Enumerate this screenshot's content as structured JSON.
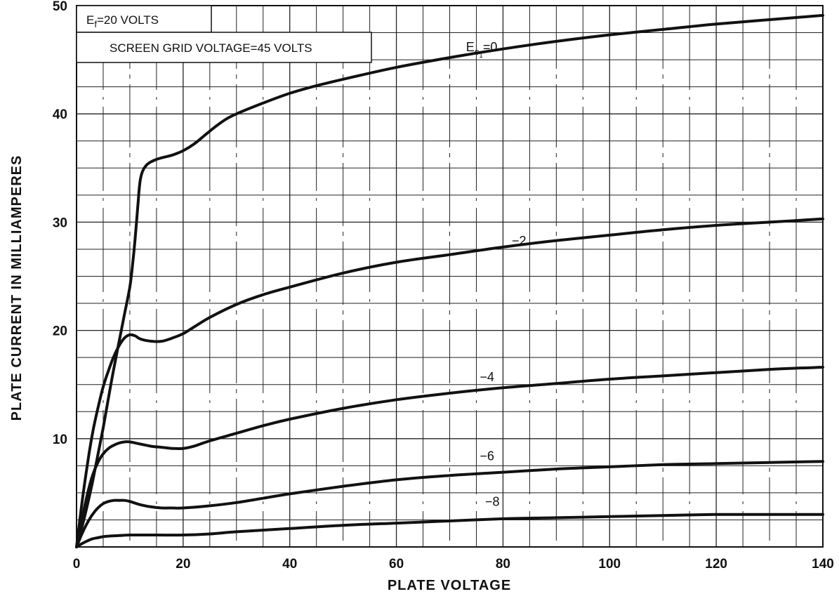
{
  "chart_data": {
    "type": "line",
    "xlabel": "PLATE VOLTAGE",
    "ylabel": "PLATE CURRENT IN MILLIAMPERES",
    "xlim": [
      0,
      140
    ],
    "ylim": [
      0,
      50
    ],
    "x_ticks": [
      "0",
      "20",
      "40",
      "60",
      "80",
      "100",
      "120",
      "140"
    ],
    "y_ticks": [
      "10",
      "20",
      "30",
      "40",
      "50"
    ],
    "grid": true,
    "annotations": {
      "filament": {
        "main": "E",
        "sub": "f",
        "rest": "=20 VOLTS"
      },
      "screen": "SCREEN GRID VOLTAGE=45 VOLTS"
    },
    "series": [
      {
        "name": "E_c1=0",
        "label": {
          "main": "E",
          "sub": "c",
          "subsub": "1",
          "rest": "=0"
        },
        "x": [
          0,
          1,
          2,
          3,
          4,
          5,
          6,
          7,
          8,
          9,
          10,
          10.5,
          11,
          11.5,
          12,
          13,
          15,
          18,
          20,
          22,
          24,
          26,
          28,
          30,
          35,
          40,
          45,
          50,
          60,
          70,
          80,
          90,
          100,
          110,
          120,
          130,
          140
        ],
        "y": [
          0,
          1.8,
          3.8,
          6.0,
          8.5,
          11.0,
          13.8,
          16.5,
          19.0,
          21.5,
          24.0,
          26.0,
          28.5,
          31.5,
          34.0,
          35.2,
          35.8,
          36.2,
          36.6,
          37.2,
          38.0,
          38.8,
          39.5,
          40.0,
          41.0,
          41.9,
          42.6,
          43.2,
          44.3,
          45.2,
          46.0,
          46.7,
          47.3,
          47.8,
          48.3,
          48.7,
          49.1
        ]
      },
      {
        "name": "-2",
        "label": {
          "rest": "-2"
        },
        "x": [
          0,
          1,
          2,
          3,
          4,
          5,
          6,
          7,
          8,
          9,
          10,
          11,
          12,
          14,
          16,
          18,
          20,
          22,
          25,
          30,
          35,
          40,
          50,
          60,
          70,
          80,
          90,
          100,
          110,
          120,
          130,
          140
        ],
        "y": [
          0,
          4.0,
          7.5,
          10.5,
          12.8,
          14.8,
          16.3,
          17.6,
          18.6,
          19.3,
          19.6,
          19.5,
          19.2,
          19.0,
          19.0,
          19.3,
          19.7,
          20.3,
          21.2,
          22.4,
          23.3,
          24.0,
          25.3,
          26.3,
          27.0,
          27.7,
          28.3,
          28.8,
          29.3,
          29.7,
          30.0,
          30.3
        ]
      },
      {
        "name": "-4",
        "label": {
          "rest": "-4"
        },
        "x": [
          0,
          1,
          2,
          3,
          4,
          5,
          6,
          7,
          8,
          9,
          10,
          12,
          14,
          16,
          18,
          20,
          22,
          25,
          30,
          35,
          40,
          50,
          60,
          70,
          80,
          90,
          100,
          110,
          120,
          130,
          140
        ],
        "y": [
          0,
          2.5,
          4.8,
          6.6,
          7.8,
          8.6,
          9.1,
          9.4,
          9.6,
          9.7,
          9.7,
          9.5,
          9.3,
          9.2,
          9.1,
          9.1,
          9.3,
          9.8,
          10.5,
          11.2,
          11.8,
          12.8,
          13.6,
          14.2,
          14.7,
          15.1,
          15.5,
          15.8,
          16.1,
          16.4,
          16.6
        ]
      },
      {
        "name": "-6",
        "label": {
          "rest": "-6"
        },
        "x": [
          0,
          1,
          2,
          3,
          4,
          5,
          6,
          7,
          8,
          9,
          10,
          12,
          14,
          16,
          18,
          20,
          25,
          30,
          35,
          40,
          50,
          60,
          70,
          80,
          90,
          100,
          110,
          120,
          130,
          140
        ],
        "y": [
          0,
          1.2,
          2.2,
          3.0,
          3.6,
          4.0,
          4.2,
          4.3,
          4.3,
          4.3,
          4.2,
          3.9,
          3.7,
          3.6,
          3.6,
          3.6,
          3.8,
          4.1,
          4.5,
          4.9,
          5.6,
          6.2,
          6.6,
          6.9,
          7.2,
          7.4,
          7.6,
          7.7,
          7.8,
          7.9
        ]
      },
      {
        "name": "-8",
        "label": {
          "rest": "-8"
        },
        "x": [
          0,
          1,
          2,
          3,
          4,
          5,
          6,
          8,
          10,
          15,
          20,
          25,
          30,
          40,
          50,
          60,
          70,
          80,
          90,
          100,
          110,
          120,
          130,
          140
        ],
        "y": [
          0,
          0.3,
          0.55,
          0.75,
          0.85,
          0.95,
          1.0,
          1.05,
          1.1,
          1.1,
          1.1,
          1.2,
          1.4,
          1.7,
          2.0,
          2.2,
          2.4,
          2.6,
          2.7,
          2.8,
          2.9,
          3.0,
          3.0,
          3.0
        ]
      }
    ]
  }
}
